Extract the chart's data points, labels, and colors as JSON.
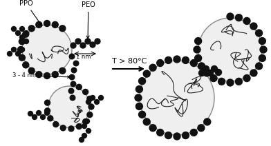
{
  "bg_color": "#ffffff",
  "circle_edge_color": "#888888",
  "circle_face_color": "#efefef",
  "dot_color": "#111111",
  "line_color": "#222222",
  "title": "T > 80°C",
  "label_ppo": "PPO",
  "label_peo": "PEO",
  "label_1nm": "1 nm",
  "label_34nm": "3 - 4 nm",
  "figsize": [
    3.92,
    2.12
  ],
  "dpi": 100
}
